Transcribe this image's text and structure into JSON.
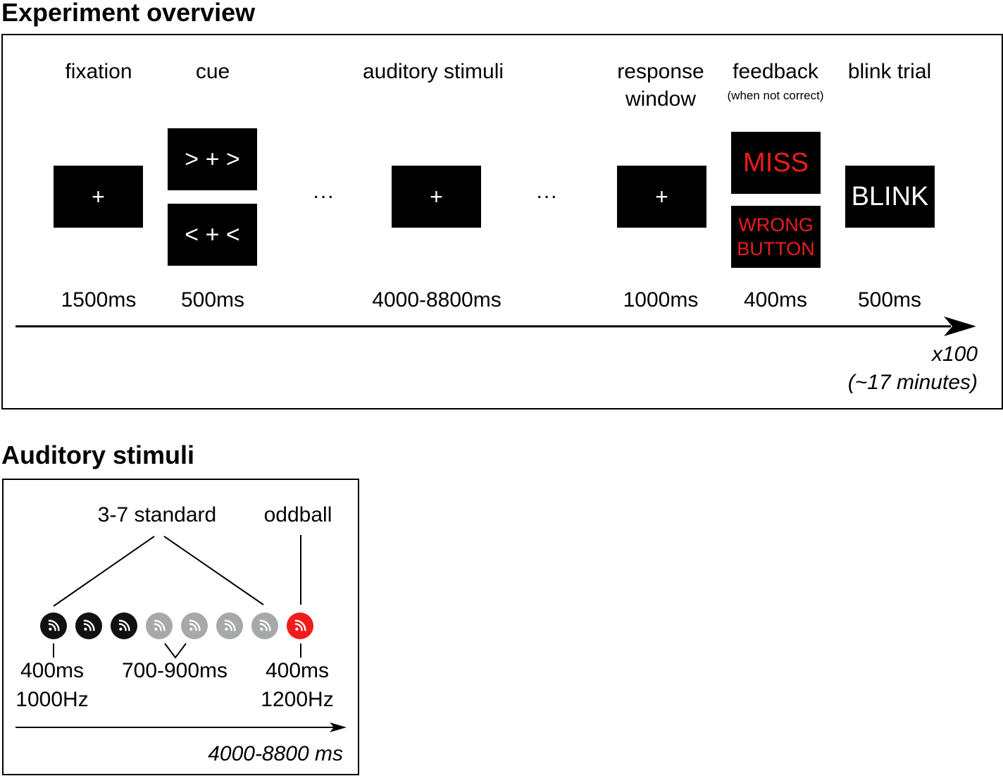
{
  "overview": {
    "title": "Experiment overview",
    "phases": [
      {
        "label": "fixation",
        "screen": "+",
        "duration": "1500ms"
      },
      {
        "label": "cue",
        "screens": [
          "> + >",
          "< + <"
        ],
        "duration": "500ms"
      },
      {
        "label": "auditory stimuli",
        "screen": "+",
        "duration": "4000-8800ms"
      },
      {
        "label_line1": "response",
        "label_line2": "window",
        "screen": "+",
        "duration": "1000ms"
      },
      {
        "label": "feedback",
        "note": "(when not correct)",
        "screens": [
          "MISS",
          "WRONG",
          "BUTTON"
        ],
        "duration": "400ms"
      },
      {
        "label": "blink trial",
        "screen": "BLINK",
        "duration": "500ms"
      }
    ],
    "ellipsis": "...",
    "repeat": "x100",
    "total_time": "(~17 minutes)"
  },
  "auditory": {
    "title": "Auditory stimuli",
    "standard_label": "3-7 standard",
    "oddball_label": "oddball",
    "standard_duration": "400ms",
    "standard_freq": "1000Hz",
    "isi": "700-900ms",
    "oddball_duration": "400ms",
    "oddball_freq": "1200Hz",
    "total": "4000-8800 ms",
    "tones": [
      {
        "kind": "standard",
        "color": "#111111"
      },
      {
        "kind": "standard",
        "color": "#111111"
      },
      {
        "kind": "standard",
        "color": "#111111"
      },
      {
        "kind": "optional-standard",
        "color": "#a6a8aa"
      },
      {
        "kind": "optional-standard",
        "color": "#a6a8aa"
      },
      {
        "kind": "optional-standard",
        "color": "#a6a8aa"
      },
      {
        "kind": "optional-standard",
        "color": "#a6a8aa"
      },
      {
        "kind": "oddball",
        "color": "#ee1c1c"
      }
    ]
  },
  "colors": {
    "feedback_text": "#ee1c1c",
    "screen_bg": "#000000",
    "screen_text": "#ffffff"
  }
}
